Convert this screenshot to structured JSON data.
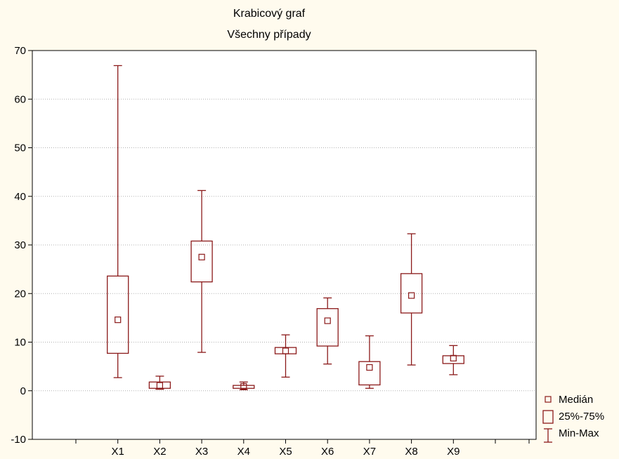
{
  "colors": {
    "background": "#fffbee",
    "plot_area": "#ffffff",
    "box": "#8b1a1a",
    "grid": "#b0b0b0"
  },
  "chart_data": {
    "type": "box",
    "title": "Krabicový graf",
    "subtitle": "Všechny případy",
    "ylim": [
      -10,
      70
    ],
    "y_ticks": [
      -10,
      0,
      10,
      20,
      30,
      40,
      50,
      60,
      70
    ],
    "grid": true,
    "legend_placement": "bottom-right",
    "categories": [
      "X1",
      "X2",
      "X3",
      "X4",
      "X5",
      "X6",
      "X7",
      "X8",
      "X9"
    ],
    "boxes": [
      {
        "name": "X1",
        "min": 2.7,
        "q1": 7.7,
        "median": 14.6,
        "q3": 23.6,
        "max": 66.9
      },
      {
        "name": "X2",
        "min": 0.3,
        "q1": 0.5,
        "median": 1.1,
        "q3": 1.8,
        "max": 3.0
      },
      {
        "name": "X3",
        "min": 7.9,
        "q1": 22.4,
        "median": 27.5,
        "q3": 30.8,
        "max": 41.2
      },
      {
        "name": "X4",
        "min": 0.2,
        "q1": 0.5,
        "median": 0.9,
        "q3": 1.1,
        "max": 1.8
      },
      {
        "name": "X5",
        "min": 2.8,
        "q1": 7.6,
        "median": 8.2,
        "q3": 8.9,
        "max": 11.5
      },
      {
        "name": "X6",
        "min": 5.5,
        "q1": 9.2,
        "median": 14.4,
        "q3": 16.9,
        "max": 19.1
      },
      {
        "name": "X7",
        "min": 0.5,
        "q1": 1.2,
        "median": 4.8,
        "q3": 6.0,
        "max": 11.3
      },
      {
        "name": "X8",
        "min": 5.3,
        "q1": 16.0,
        "median": 19.6,
        "q3": 24.1,
        "max": 32.3
      },
      {
        "name": "X9",
        "min": 3.3,
        "q1": 5.6,
        "median": 6.7,
        "q3": 7.2,
        "max": 9.3
      }
    ],
    "legend": [
      {
        "key": "median",
        "label": "Medián"
      },
      {
        "key": "iqr",
        "label": "25%-75%"
      },
      {
        "key": "range",
        "label": "Min-Max"
      }
    ]
  }
}
